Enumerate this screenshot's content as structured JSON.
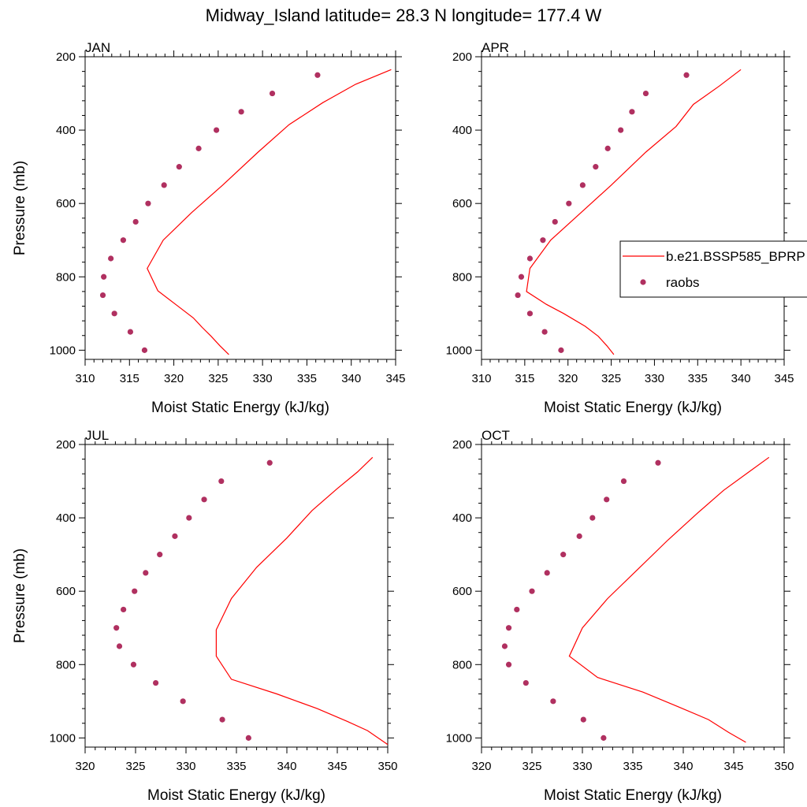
{
  "title": "Midway_Island  latitude= 28.3 N longitude= 177.4 W",
  "colors": {
    "model": "#ff0000",
    "obs": "#b03060",
    "axis": "#000000"
  },
  "legend": {
    "model_label": "b.e21.BSSP585_BPRP",
    "obs_label": "raobs",
    "placement": "right of APR panel, clipped at figure edge"
  },
  "chart_data": [
    {
      "type": "line+scatter",
      "panel": "JAN",
      "title": "JAN",
      "xlabel": "Moist Static Energy (kJ/kg)",
      "ylabel": "Pressure (mb)",
      "xlim": [
        310,
        345
      ],
      "ylim": [
        1025,
        200
      ],
      "xticks": [
        310,
        315,
        320,
        325,
        330,
        335,
        340,
        345
      ],
      "yticks": [
        200,
        400,
        600,
        800,
        1000
      ],
      "series": [
        {
          "name": "b.e21.BSSP585_BPRP",
          "kind": "line",
          "p": [
            1012,
            988,
            962,
            938,
            912,
            875,
            838,
            777,
            700,
            625,
            550,
            460,
            385,
            325,
            275,
            235
          ],
          "mse": [
            326.2,
            325.2,
            324.2,
            323.2,
            322.2,
            320.2,
            318.2,
            317.0,
            318.8,
            322.0,
            325.5,
            329.5,
            333.0,
            336.8,
            340.5,
            344.5
          ]
        },
        {
          "name": "raobs",
          "kind": "scatter",
          "p": [
            1000,
            950,
            900,
            850,
            800,
            750,
            700,
            650,
            600,
            550,
            500,
            450,
            400,
            350,
            300,
            250
          ],
          "mse": [
            316.7,
            315.1,
            313.3,
            312.0,
            312.1,
            312.9,
            314.3,
            315.7,
            317.1,
            318.9,
            320.6,
            322.8,
            324.8,
            327.6,
            331.1,
            336.2
          ]
        }
      ]
    },
    {
      "type": "line+scatter",
      "panel": "APR",
      "title": "APR",
      "xlabel": "Moist Static Energy (kJ/kg)",
      "ylabel": "",
      "xlim": [
        310,
        345
      ],
      "ylim": [
        1025,
        200
      ],
      "xticks": [
        310,
        315,
        320,
        325,
        330,
        335,
        340,
        345
      ],
      "yticks": [
        200,
        400,
        600,
        800,
        1000
      ],
      "series": [
        {
          "name": "b.e21.BSSP585_BPRP",
          "kind": "line",
          "p": [
            1012,
            988,
            962,
            935,
            900,
            875,
            840,
            777,
            700,
            625,
            550,
            460,
            390,
            330,
            280,
            235
          ],
          "mse": [
            325.3,
            324.5,
            323.5,
            322.0,
            319.5,
            317.5,
            315.2,
            315.6,
            318.0,
            321.5,
            325.0,
            329.0,
            332.5,
            334.5,
            337.5,
            340.0
          ]
        },
        {
          "name": "raobs",
          "kind": "scatter",
          "p": [
            1000,
            950,
            900,
            850,
            800,
            750,
            700,
            650,
            600,
            550,
            500,
            450,
            400,
            350,
            300,
            250
          ],
          "mse": [
            319.2,
            317.3,
            315.6,
            314.2,
            314.6,
            315.6,
            317.1,
            318.5,
            320.1,
            321.7,
            323.2,
            324.6,
            326.1,
            327.4,
            329.0,
            333.7
          ]
        }
      ]
    },
    {
      "type": "line+scatter",
      "panel": "JUL",
      "title": "JUL",
      "xlabel": "Moist Static Energy (kJ/kg)",
      "ylabel": "Pressure (mb)",
      "xlim": [
        320,
        350
      ],
      "ylim": [
        1025,
        200
      ],
      "xticks": [
        320,
        325,
        330,
        335,
        340,
        345,
        350
      ],
      "yticks": [
        200,
        400,
        600,
        800,
        1000
      ],
      "series": [
        {
          "name": "b.e21.BSSP585_BPRP",
          "kind": "line",
          "p": [
            1018,
            980,
            955,
            920,
            880,
            840,
            777,
            705,
            620,
            535,
            455,
            380,
            320,
            275,
            235
          ],
          "mse": [
            350.0,
            348.0,
            346.0,
            343.0,
            339.0,
            334.5,
            333.0,
            333.0,
            334.5,
            337.0,
            340.0,
            342.5,
            345.0,
            347.0,
            348.5
          ]
        },
        {
          "name": "raobs",
          "kind": "scatter",
          "p": [
            1000,
            950,
            900,
            850,
            800,
            750,
            700,
            650,
            600,
            550,
            500,
            450,
            400,
            350,
            300,
            250
          ],
          "mse": [
            336.2,
            333.6,
            329.7,
            327.0,
            324.8,
            323.4,
            323.1,
            323.8,
            324.9,
            326.0,
            327.4,
            328.9,
            330.3,
            331.8,
            333.5,
            338.3
          ]
        }
      ]
    },
    {
      "type": "line+scatter",
      "panel": "OCT",
      "title": "OCT",
      "xlabel": "Moist Static Energy (kJ/kg)",
      "ylabel": "",
      "xlim": [
        320,
        350
      ],
      "ylim": [
        1025,
        200
      ],
      "xticks": [
        320,
        325,
        330,
        335,
        340,
        345,
        350
      ],
      "yticks": [
        200,
        400,
        600,
        800,
        1000
      ],
      "series": [
        {
          "name": "b.e21.BSSP585_BPRP",
          "kind": "line",
          "p": [
            1012,
            985,
            950,
            915,
            875,
            835,
            777,
            700,
            620,
            540,
            460,
            385,
            325,
            275,
            235
          ],
          "mse": [
            346.2,
            344.5,
            342.5,
            339.5,
            336.0,
            331.5,
            328.7,
            330.0,
            332.5,
            335.5,
            338.5,
            341.5,
            344.0,
            346.5,
            348.5
          ]
        },
        {
          "name": "raobs",
          "kind": "scatter",
          "p": [
            1000,
            950,
            900,
            850,
            800,
            750,
            700,
            650,
            600,
            550,
            500,
            450,
            400,
            350,
            300,
            250
          ],
          "mse": [
            332.1,
            330.1,
            327.1,
            324.4,
            322.7,
            322.3,
            322.7,
            323.5,
            325.0,
            326.5,
            328.1,
            329.7,
            331.0,
            332.4,
            334.1,
            337.5
          ]
        }
      ]
    }
  ]
}
